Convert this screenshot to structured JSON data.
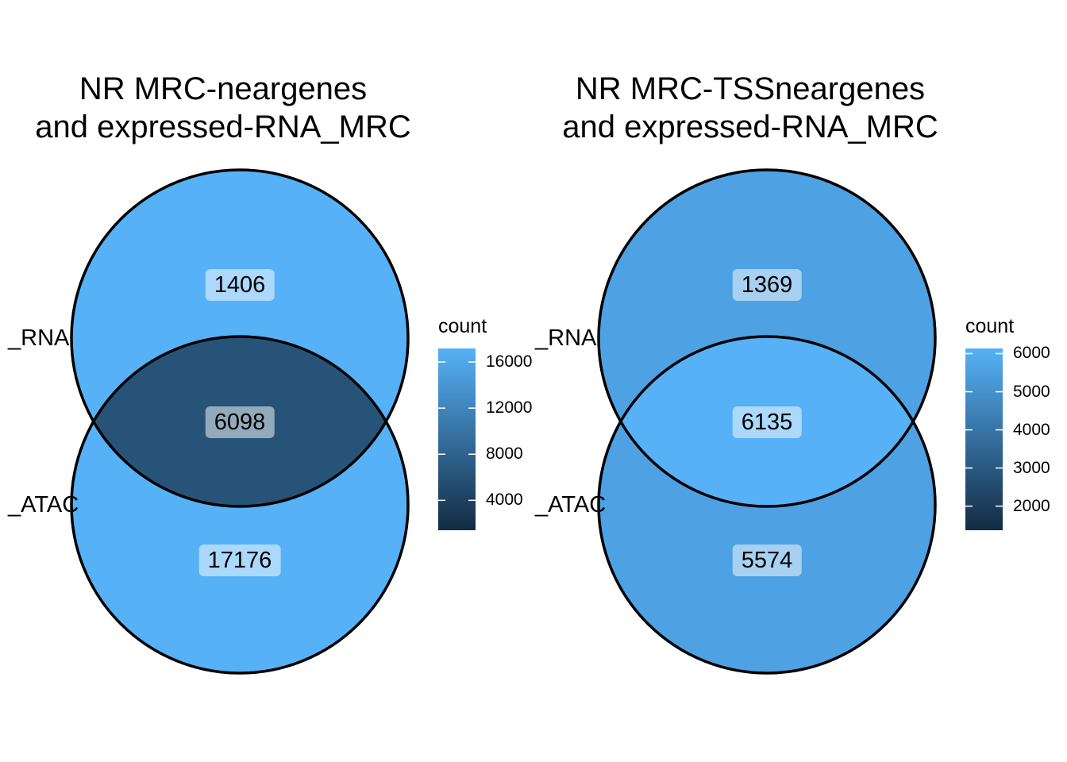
{
  "chart_data": [
    {
      "type": "venn",
      "title": "NR MRC-neargenes\nand expressed-RNA_MRC",
      "sets": [
        "_RNA",
        "_ATAC"
      ],
      "regions": [
        {
          "sets": [
            "_RNA"
          ],
          "count": 1406
        },
        {
          "sets": [
            "_RNA",
            "_ATAC"
          ],
          "count": 6098
        },
        {
          "sets": [
            "_ATAC"
          ],
          "count": 17176
        }
      ],
      "legend": {
        "title": "count",
        "ticks": [
          4000,
          8000,
          12000,
          16000
        ],
        "range": [
          1406,
          17176
        ],
        "low_color": "#132B43",
        "high_color": "#56B1F7"
      }
    },
    {
      "type": "venn",
      "title": "NR MRC-TSSneargenes\nand expressed-RNA_MRC",
      "sets": [
        "_RNA",
        "_ATAC"
      ],
      "regions": [
        {
          "sets": [
            "_RNA"
          ],
          "count": 1369
        },
        {
          "sets": [
            "_RNA",
            "_ATAC"
          ],
          "count": 6135
        },
        {
          "sets": [
            "_ATAC"
          ],
          "count": 5574
        }
      ],
      "legend": {
        "title": "count",
        "ticks": [
          2000,
          3000,
          4000,
          5000,
          6000
        ],
        "range": [
          1369,
          6135
        ],
        "low_color": "#132B43",
        "high_color": "#56B1F7"
      }
    }
  ]
}
